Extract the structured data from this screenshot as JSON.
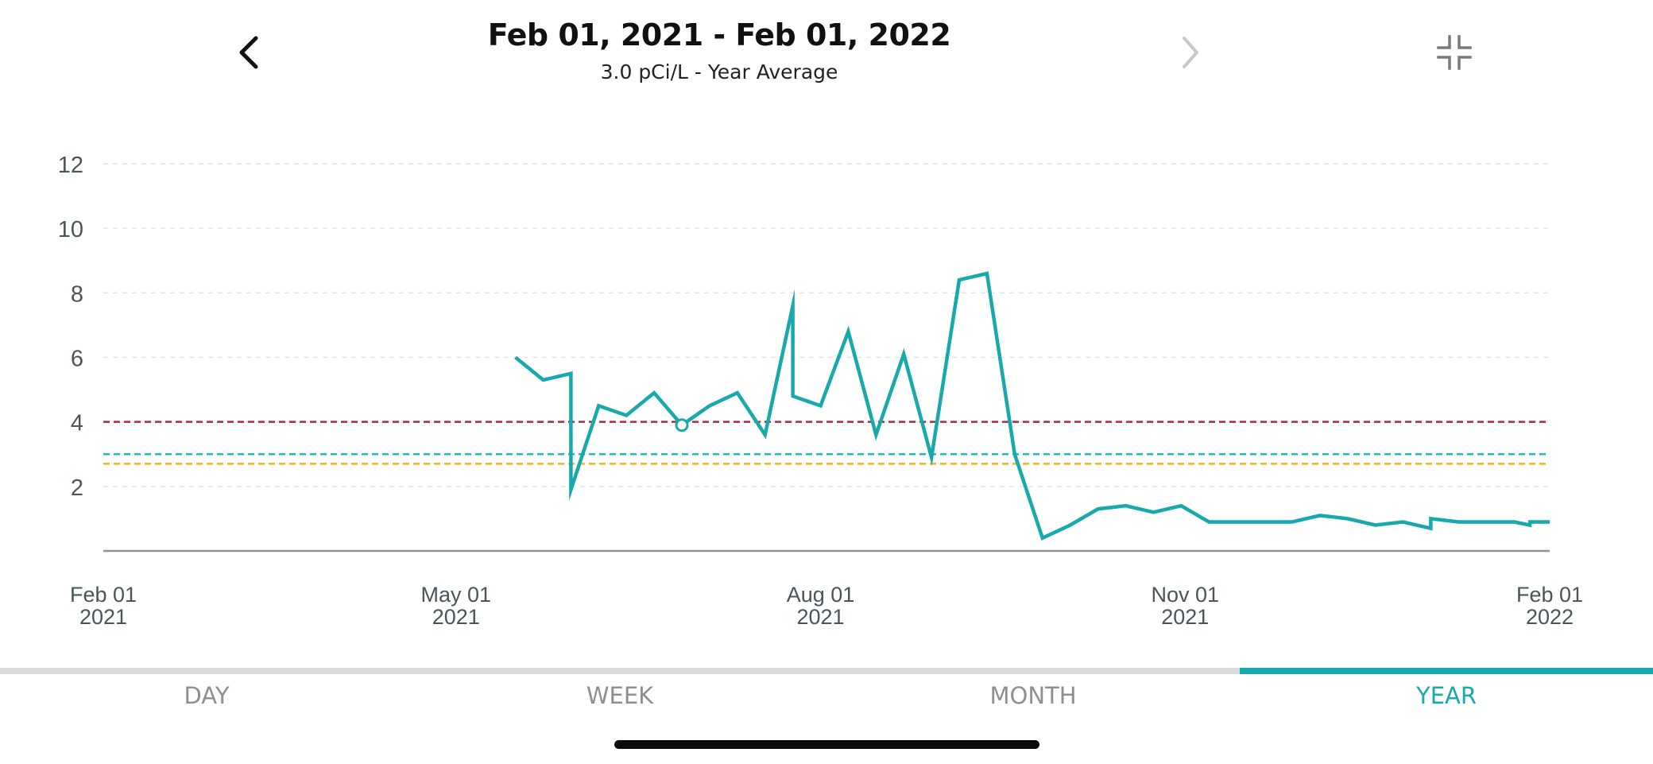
{
  "header": {
    "title": "Feb 01, 2021 - Feb 01, 2022",
    "subtitle": "3.0 pCi/L - Year Average"
  },
  "icons": {
    "prev": "chevron-left-icon",
    "next": "chevron-right-icon",
    "collapse": "collapse-icon"
  },
  "tabs": [
    {
      "label": "DAY",
      "active": false
    },
    {
      "label": "WEEK",
      "active": false
    },
    {
      "label": "MONTH",
      "active": false
    },
    {
      "label": "YEAR",
      "active": true
    }
  ],
  "colors": {
    "line": "#17a9ab",
    "threshold_red": "#b5263a",
    "threshold_teal": "#27b7c4",
    "threshold_yellow": "#f0b323",
    "axis": "#8a9599",
    "grid": "#e2e4e6",
    "tick_text": "#4a5559"
  },
  "chart_data": {
    "type": "line",
    "x_ticks": [
      {
        "date": "2021-02-01",
        "label": [
          "Feb 01",
          "2021"
        ]
      },
      {
        "date": "2021-05-01",
        "label": [
          "May 01",
          "2021"
        ]
      },
      {
        "date": "2021-08-01",
        "label": [
          "Aug 01",
          "2021"
        ]
      },
      {
        "date": "2021-11-01",
        "label": [
          "Nov 01",
          "2021"
        ]
      },
      {
        "date": "2022-02-01",
        "label": [
          "Feb 01",
          "2022"
        ]
      }
    ],
    "xlim": [
      "2021-02-01",
      "2022-02-01"
    ],
    "y_ticks": [
      2,
      4,
      6,
      8,
      10,
      12
    ],
    "ylim": [
      0,
      12
    ],
    "grid": true,
    "thresholds": [
      {
        "value": 4.0,
        "color": "#b5263a"
      },
      {
        "value": 3.0,
        "color": "#27b7c4"
      },
      {
        "value": 2.7,
        "color": "#f0b323"
      }
    ],
    "series": [
      {
        "x": [
          "2021-05-16",
          "2021-05-23",
          "2021-05-30",
          "2021-05-30",
          "2021-06-06",
          "2021-06-13",
          "2021-06-20",
          "2021-06-27",
          "2021-07-04",
          "2021-07-11",
          "2021-07-18",
          "2021-07-25",
          "2021-07-25",
          "2021-08-01",
          "2021-08-08",
          "2021-08-15",
          "2021-08-22",
          "2021-08-29",
          "2021-09-05",
          "2021-09-12",
          "2021-09-19",
          "2021-09-26",
          "2021-10-03",
          "2021-10-03",
          "2021-10-10",
          "2021-10-17",
          "2021-10-24",
          "2021-10-31",
          "2021-11-07",
          "2021-11-14",
          "2021-11-21",
          "2021-11-28",
          "2021-12-05",
          "2021-12-12",
          "2021-12-19",
          "2021-12-26",
          "2022-01-02",
          "2022-01-02",
          "2022-01-09",
          "2022-01-16",
          "2022-01-23",
          "2022-01-27",
          "2022-01-27",
          "2022-02-01"
        ],
        "y": [
          6.0,
          5.3,
          5.5,
          1.9,
          4.5,
          4.2,
          4.9,
          3.9,
          4.5,
          4.9,
          3.6,
          7.6,
          4.8,
          4.5,
          6.8,
          3.6,
          6.1,
          2.9,
          8.4,
          8.6,
          3.0,
          0.4,
          0.8,
          0.8,
          1.3,
          1.4,
          1.2,
          1.4,
          0.9,
          0.9,
          0.9,
          0.9,
          1.1,
          1.0,
          0.8,
          0.9,
          0.7,
          1.0,
          0.9,
          0.9,
          0.9,
          0.8,
          0.9,
          0.9
        ]
      }
    ],
    "highlight_point": {
      "x": "2021-06-27",
      "y": 3.9
    }
  }
}
